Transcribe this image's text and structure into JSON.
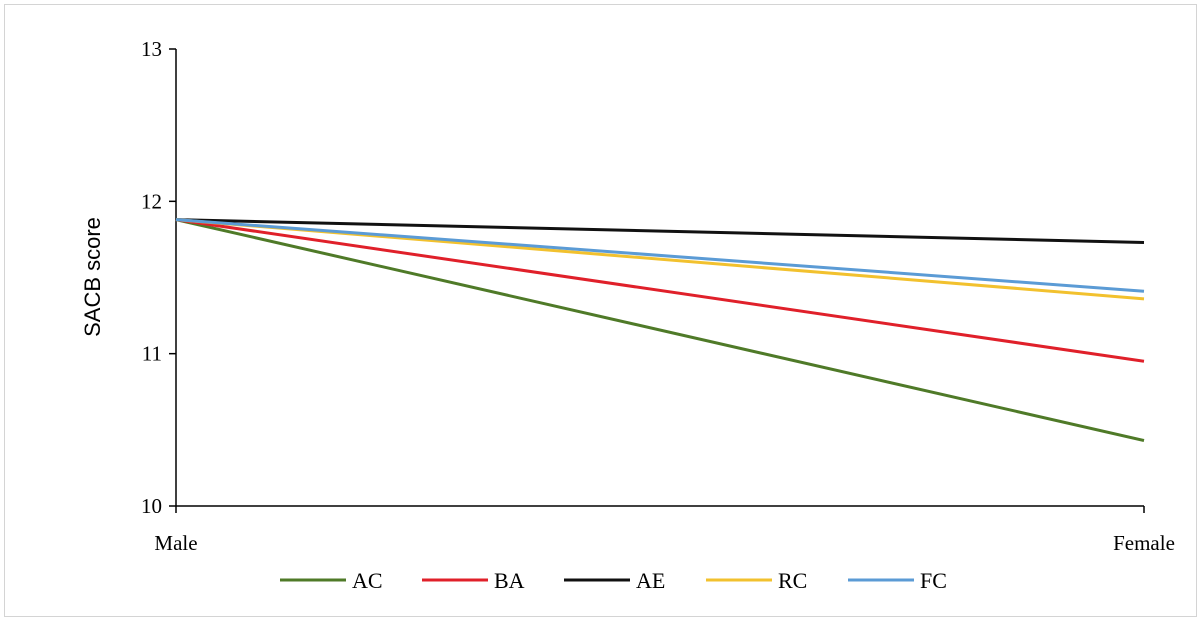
{
  "chart_data": {
    "type": "line",
    "title": "",
    "xlabel": "",
    "ylabel": "SACB score",
    "categories": [
      "Male",
      "Female"
    ],
    "ylim": [
      10,
      13
    ],
    "yticks": [
      10,
      11,
      12,
      13
    ],
    "grid": false,
    "legend_position": "bottom",
    "series": [
      {
        "name": "AC",
        "color": "#4f7a28",
        "values": [
          11.88,
          10.43
        ]
      },
      {
        "name": "BA",
        "color": "#e0202a",
        "values": [
          11.88,
          10.95
        ]
      },
      {
        "name": "AE",
        "color": "#111111",
        "values": [
          11.88,
          11.73
        ]
      },
      {
        "name": "RC",
        "color": "#f2c12e",
        "values": [
          11.88,
          11.36
        ]
      },
      {
        "name": "FC",
        "color": "#5b9bd5",
        "values": [
          11.88,
          11.41
        ]
      }
    ]
  }
}
